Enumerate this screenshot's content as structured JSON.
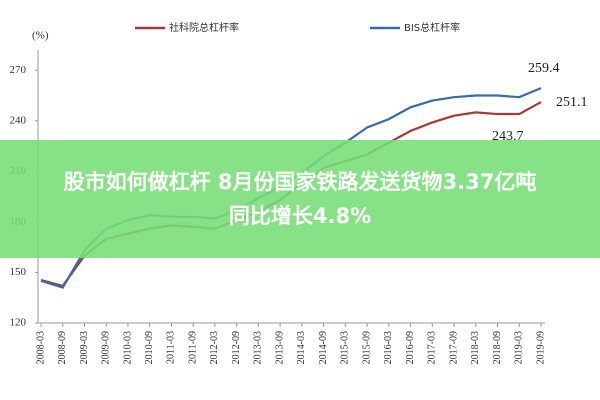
{
  "chart_data": {
    "type": "line",
    "y_unit": "(%)",
    "categories": [
      "2008-03",
      "2008-09",
      "2009-03",
      "2009-09",
      "2010-03",
      "2010-09",
      "2011-03",
      "2011-09",
      "2012-03",
      "2012-09",
      "2013-03",
      "2013-09",
      "2014-03",
      "2014-09",
      "2015-03",
      "2015-09",
      "2016-03",
      "2016-09",
      "2017-03",
      "2017-09",
      "2018-03",
      "2018-09",
      "2019-03",
      "2019-09"
    ],
    "series": [
      {
        "name": "社科院总杠杆率",
        "color": "#a33a35",
        "values": [
          145.5,
          142,
          160,
          170,
          173,
          176,
          178,
          177,
          176,
          181,
          186,
          193,
          203,
          212,
          216,
          220,
          227,
          234,
          239,
          243,
          245,
          244,
          244,
          251.1
        ]
      },
      {
        "name": "BIS总杠杆率",
        "color": "#3a6aa8",
        "values": [
          145,
          141,
          163,
          176,
          181,
          184,
          183,
          183,
          182,
          187,
          194,
          201,
          209,
          219,
          227,
          236,
          241,
          248,
          252,
          254,
          255,
          255,
          254,
          259.4
        ]
      }
    ],
    "annotations": [
      "259.4",
      "251.1",
      "243.7"
    ],
    "ylim": [
      120,
      282
    ],
    "yticks": [
      120,
      150,
      180,
      210,
      240,
      270
    ],
    "grid": false
  },
  "banner": {
    "lines": [
      "股市如何做杠杆 8月份国家铁路发送货物3.37亿吨",
      "同比增长4.8%"
    ]
  }
}
